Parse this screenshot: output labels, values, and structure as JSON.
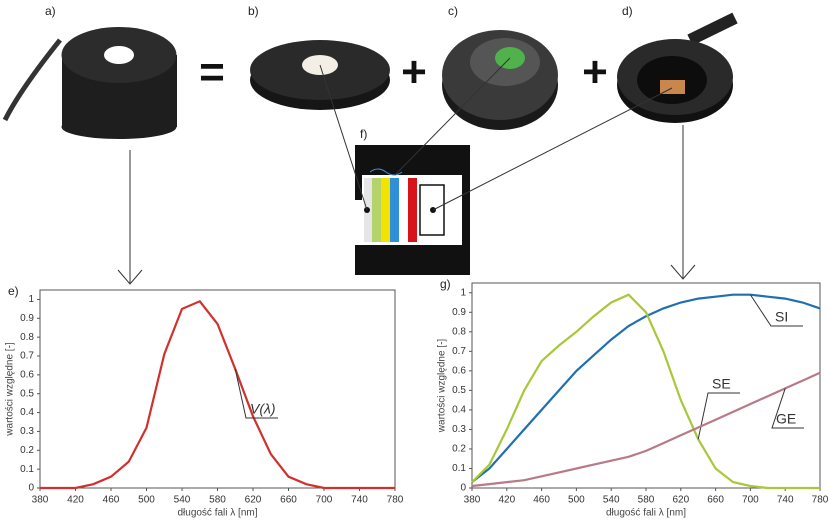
{
  "panel_labels": [
    "a)",
    "b)",
    "c)",
    "d)",
    "f)"
  ],
  "operators": [
    "=",
    "+",
    "+"
  ],
  "chart_data": [
    {
      "type": "line",
      "panel_label": "e)",
      "xlabel": "długość fali  λ [nm]",
      "ylabel": "wartości względne [-]",
      "x": [
        380,
        400,
        420,
        440,
        460,
        480,
        500,
        520,
        540,
        560,
        580,
        600,
        620,
        640,
        660,
        680,
        700,
        720,
        740,
        760,
        780
      ],
      "series": [
        {
          "name": "V(λ)",
          "color": "#d0312d",
          "values": [
            0,
            0,
            0,
            0.02,
            0.06,
            0.14,
            0.32,
            0.71,
            0.95,
            0.99,
            0.87,
            0.63,
            0.38,
            0.18,
            0.06,
            0.02,
            0,
            0,
            0,
            0,
            0
          ]
        }
      ],
      "xlim": [
        380,
        780
      ],
      "ylim": [
        0,
        1.05
      ],
      "xticks": [
        380,
        420,
        460,
        500,
        540,
        580,
        620,
        660,
        700,
        740,
        780
      ],
      "yticks": [
        0,
        0.1,
        0.2,
        0.3,
        0.4,
        0.5,
        0.6,
        0.7,
        0.8,
        0.9,
        1
      ],
      "grid": false
    },
    {
      "type": "line",
      "panel_label": "g)",
      "xlabel": "długość fali  λ [nm]",
      "ylabel": "wartości względne [-]",
      "x": [
        380,
        400,
        420,
        440,
        460,
        480,
        500,
        520,
        540,
        560,
        580,
        600,
        620,
        640,
        660,
        680,
        700,
        720,
        740,
        760,
        780
      ],
      "series": [
        {
          "name": "SI",
          "color": "#1f6fb2",
          "values": [
            0.03,
            0.1,
            0.2,
            0.3,
            0.4,
            0.5,
            0.6,
            0.68,
            0.76,
            0.83,
            0.88,
            0.92,
            0.95,
            0.97,
            0.98,
            0.99,
            0.99,
            0.98,
            0.97,
            0.95,
            0.92
          ]
        },
        {
          "name": "SE",
          "color": "#a8c83a",
          "values": [
            0.03,
            0.12,
            0.3,
            0.5,
            0.65,
            0.73,
            0.8,
            0.88,
            0.95,
            0.99,
            0.9,
            0.7,
            0.45,
            0.25,
            0.1,
            0.03,
            0.01,
            0,
            0,
            0,
            0
          ]
        },
        {
          "name": "GE",
          "color": "#b87a88",
          "values": [
            0.01,
            0.02,
            0.03,
            0.04,
            0.06,
            0.08,
            0.1,
            0.12,
            0.14,
            0.16,
            0.19,
            0.23,
            0.27,
            0.31,
            0.35,
            0.39,
            0.43,
            0.47,
            0.51,
            0.55,
            0.59
          ]
        }
      ],
      "xlim": [
        380,
        780
      ],
      "ylim": [
        0,
        1.05
      ],
      "xticks": [
        380,
        420,
        460,
        500,
        540,
        580,
        620,
        660,
        700,
        740,
        780
      ],
      "yticks": [
        0,
        0.1,
        0.2,
        0.3,
        0.4,
        0.5,
        0.6,
        0.7,
        0.8,
        0.9,
        1
      ],
      "grid": false
    }
  ]
}
